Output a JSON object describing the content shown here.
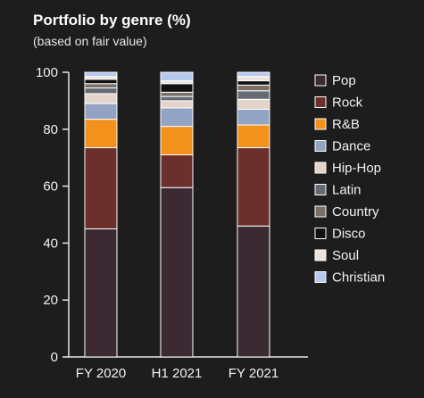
{
  "chart_data": {
    "type": "bar",
    "stacked": true,
    "title": "Portfolio by genre (%)",
    "subtitle": "(based on fair value)",
    "categories": [
      "FY 2020",
      "H1 2021",
      "FY 2021"
    ],
    "ylim": [
      0,
      100
    ],
    "yticks": [
      0,
      20,
      40,
      60,
      80,
      100
    ],
    "grid": false,
    "legend_position": "right",
    "series": [
      {
        "name": "Pop",
        "color": "#3b2a32",
        "values": [
          45.0,
          59.5,
          46.0
        ]
      },
      {
        "name": "Rock",
        "color": "#6b2f2c",
        "values": [
          28.5,
          11.5,
          27.5
        ]
      },
      {
        "name": "R&B",
        "color": "#f2921c",
        "values": [
          10.0,
          10.0,
          8.0
        ]
      },
      {
        "name": "Dance",
        "color": "#93a3c4",
        "values": [
          5.5,
          6.5,
          5.5
        ]
      },
      {
        "name": "Hip-Hop",
        "color": "#e3d3c8",
        "values": [
          3.5,
          2.5,
          3.5
        ]
      },
      {
        "name": "Latin",
        "color": "#666b73",
        "values": [
          2.0,
          1.5,
          3.0
        ]
      },
      {
        "name": "Country",
        "color": "#7b6f66",
        "values": [
          1.5,
          1.5,
          2.0
        ]
      },
      {
        "name": "Disco",
        "color": "#111111",
        "values": [
          1.5,
          3.0,
          1.5
        ]
      },
      {
        "name": "Soul",
        "color": "#ece3da",
        "values": [
          1.0,
          1.0,
          1.5
        ]
      },
      {
        "name": "Christian",
        "color": "#b7c8ee",
        "values": [
          1.5,
          3.0,
          1.5
        ]
      }
    ]
  }
}
